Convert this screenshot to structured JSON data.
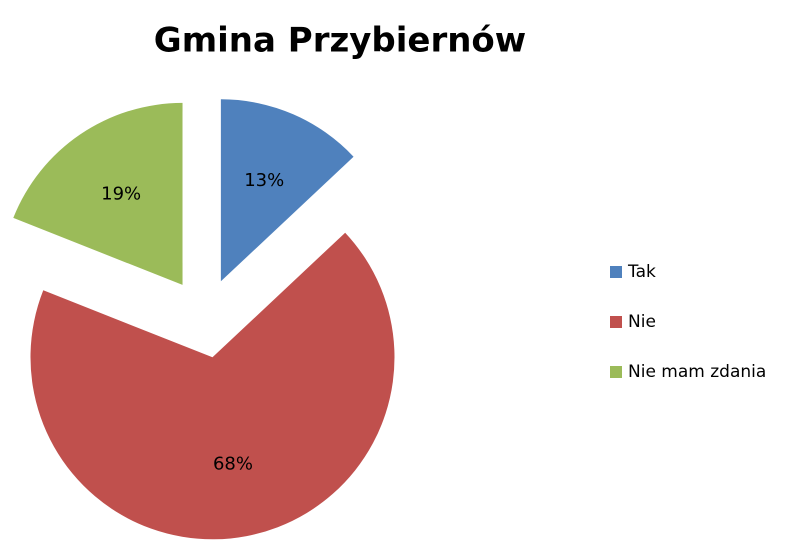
{
  "chart_data": {
    "type": "pie",
    "title": "Gmina Przybiernów",
    "categories": [
      "Tak",
      "Nie",
      "Nie mam zdania"
    ],
    "values": [
      13,
      68,
      19
    ],
    "value_labels": [
      "13%",
      "68%",
      "19%"
    ],
    "colors": [
      "#4f81bd",
      "#c0504d",
      "#9bbb59"
    ],
    "legend": "right"
  }
}
